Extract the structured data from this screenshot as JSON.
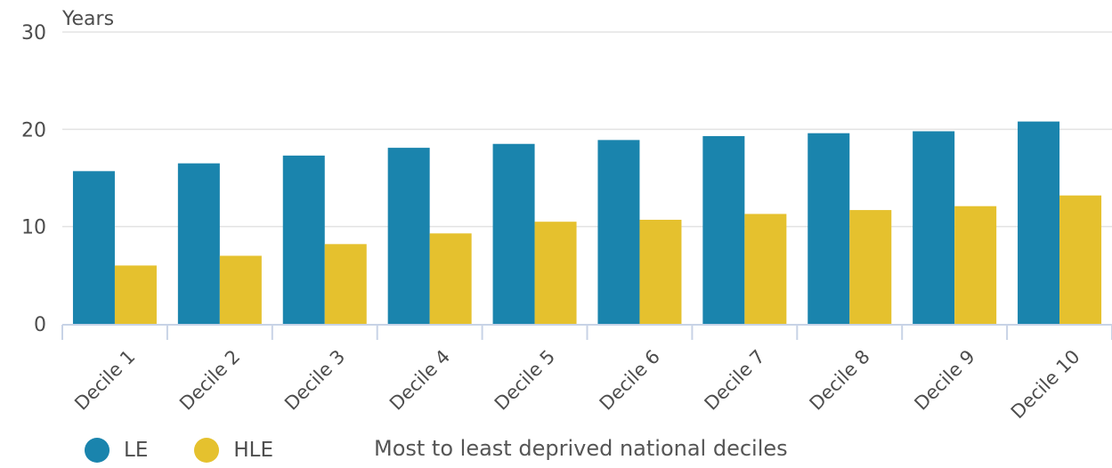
{
  "chart_data": {
    "type": "bar",
    "ylabel": "Years",
    "xlabel": "Most to least deprived national deciles",
    "ylim": [
      0,
      30
    ],
    "yticks": [
      0,
      10,
      20,
      30
    ],
    "grid": true,
    "legend_position": "bottom-left",
    "categories": [
      "Decile 1",
      "Decile 2",
      "Decile 3",
      "Decile 4",
      "Decile 5",
      "Decile 6",
      "Decile 7",
      "Decile 8",
      "Decile 9",
      "Decile 10"
    ],
    "series": [
      {
        "name": "LE",
        "color": "#1a84ad",
        "values": [
          15.7,
          16.5,
          17.3,
          18.1,
          18.5,
          18.9,
          19.3,
          19.6,
          19.8,
          20.8
        ]
      },
      {
        "name": "HLE",
        "color": "#e5c12e",
        "values": [
          6.0,
          7.0,
          8.2,
          9.3,
          10.5,
          10.7,
          11.3,
          11.7,
          12.1,
          13.2
        ]
      }
    ]
  }
}
